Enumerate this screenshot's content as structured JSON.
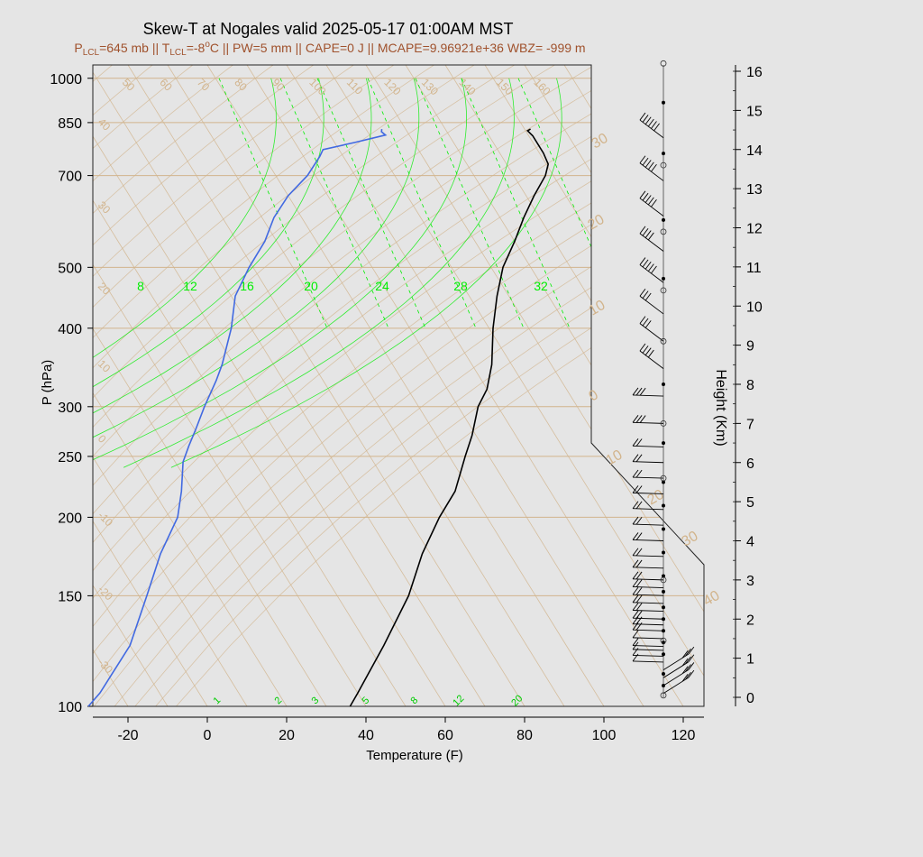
{
  "title": "Skew-T at Nogales valid 2025-05-17 01:00AM MST",
  "subtitle": "P_LCL=645 mb || T_LCL=-8°C || PW=5 mm || CAPE=0 J || MCAPE=9.96921e+36 WBZ= -999 m",
  "subtitle_parts": {
    "p_sym": "P",
    "p_sub": "LCL",
    "p_val": "=645 mb || ",
    "t_sym": "T",
    "t_sub": "LCL",
    "t_val": "=-8",
    "t_deg": "o",
    "t_rest": "C || PW=5 mm || CAPE=0 J || MCAPE=9.96921e+36 WBZ= -999 m"
  },
  "colors": {
    "background": "#e5e5e5",
    "isotherm": "#d2b48c",
    "mixing_ratio": "#00ee00",
    "temperature": "#000000",
    "dewpoint": "#4169e1",
    "subtitle": "#a0522d"
  },
  "chart_data": {
    "type": "line",
    "xlabel": "Temperature (F)",
    "ylabel": "P (hPa)",
    "y2label": "Height (Km)",
    "x_ticks": [
      "-20",
      "0",
      "20",
      "40",
      "60",
      "80",
      "100",
      "120"
    ],
    "p_ticks": [
      "100",
      "150",
      "200",
      "250",
      "300",
      "400",
      "500",
      "700",
      "850",
      "1000"
    ],
    "height_ticks": [
      "0",
      "1",
      "2",
      "3",
      "4",
      "5",
      "6",
      "7",
      "8",
      "9",
      "10",
      "11",
      "12",
      "13",
      "14",
      "15",
      "16"
    ],
    "isotherm_labels_top": [
      "50",
      "60",
      "70",
      "80",
      "90",
      "100",
      "110",
      "120",
      "130",
      "140",
      "150",
      "160"
    ],
    "isotherm_labels_left": [
      "40",
      "30",
      "20",
      "10",
      "0",
      "-10",
      "-20",
      "-30"
    ],
    "isotherm_labels_right": [
      "30",
      "20",
      "10",
      "0",
      "10",
      "20",
      "30",
      "40"
    ],
    "mixing_ratio_labels_top": [
      "8",
      "12",
      "16",
      "20",
      "24",
      "28",
      "32"
    ],
    "mixing_ratio_labels_bottom": [
      "1",
      "2",
      "3",
      "5",
      "8",
      "12",
      "20"
    ],
    "series": [
      {
        "points": [
          [
            830,
            71.5
          ],
          [
            825,
            70.5
          ],
          [
            810,
            71
          ],
          [
            760,
            71
          ],
          [
            730,
            70.5
          ],
          [
            700,
            68
          ],
          [
            650,
            62
          ],
          [
            600,
            56
          ],
          [
            550,
            50
          ],
          [
            500,
            43
          ],
          [
            450,
            37
          ],
          [
            400,
            31
          ],
          [
            350,
            25
          ],
          [
            320,
            20
          ],
          [
            300,
            15
          ],
          [
            270,
            9
          ],
          [
            250,
            4
          ],
          [
            220,
            -4
          ],
          [
            200,
            -12
          ],
          [
            175,
            -22
          ],
          [
            150,
            -32
          ],
          [
            125,
            -46
          ],
          [
            105,
            -60
          ],
          [
            100,
            -64
          ]
        ]
      },
      {
        "points": [
          [
            830,
            34
          ],
          [
            822,
            33.5
          ],
          [
            812,
            34
          ],
          [
            790,
            25
          ],
          [
            770,
            16
          ],
          [
            750,
            14
          ],
          [
            700,
            8
          ],
          [
            650,
            0
          ],
          [
            600,
            -7
          ],
          [
            550,
            -13
          ],
          [
            500,
            -21
          ],
          [
            450,
            -29
          ],
          [
            400,
            -35
          ],
          [
            350,
            -43
          ],
          [
            330,
            -47
          ],
          [
            300,
            -54
          ],
          [
            275,
            -60
          ],
          [
            260,
            -64
          ],
          [
            245,
            -68
          ],
          [
            220,
            -73
          ],
          [
            200,
            -78
          ],
          [
            175,
            -88
          ],
          [
            150,
            -98
          ],
          [
            125,
            -110
          ],
          [
            105,
            -125
          ],
          [
            100,
            -130
          ]
        ]
      }
    ],
    "wind_barb_heights_km": [
      0.1,
      0.3,
      0.5,
      0.7,
      0.9,
      1.05,
      1.2,
      1.3,
      1.5,
      1.7,
      1.85,
      2.0,
      2.2,
      2.4,
      2.6,
      2.8,
      3.0,
      3.3,
      3.6,
      4.0,
      4.4,
      4.8,
      5.2,
      5.6,
      6.0,
      6.4,
      7.0,
      7.7,
      8.4,
      9.1,
      9.8,
      10.6,
      11.4,
      12.3,
      13.2,
      14.3
    ],
    "wind_barb_flags": [
      1,
      1,
      1,
      1,
      0,
      0,
      0,
      0,
      0,
      0,
      0,
      0,
      0,
      0,
      0,
      0,
      0,
      0,
      0,
      0,
      0,
      0,
      0,
      0,
      0,
      0,
      0,
      0,
      1,
      1,
      1,
      2,
      1,
      1,
      1,
      2
    ],
    "wind_barb_full": [
      1,
      1,
      1,
      1,
      1,
      1,
      1,
      1,
      1,
      2,
      2,
      2,
      2,
      2,
      2,
      2,
      2,
      2,
      2,
      2,
      2,
      2,
      2,
      2,
      2,
      2,
      3,
      3,
      2,
      1,
      1,
      1,
      2,
      3,
      3,
      2
    ],
    "height_markers_filled_km": [
      0.3,
      0.6,
      1.1,
      1.4,
      1.7,
      2.0,
      2.3,
      2.7,
      3.1,
      3.7,
      4.3,
      4.9,
      5.5,
      6.5,
      8.0,
      10.7,
      12.2,
      13.9,
      15.2
    ],
    "height_markers_open_km": [
      0.05,
      1.45,
      3.0,
      5.6,
      7.0,
      9.1,
      10.4,
      11.9,
      13.6,
      16.2
    ]
  }
}
